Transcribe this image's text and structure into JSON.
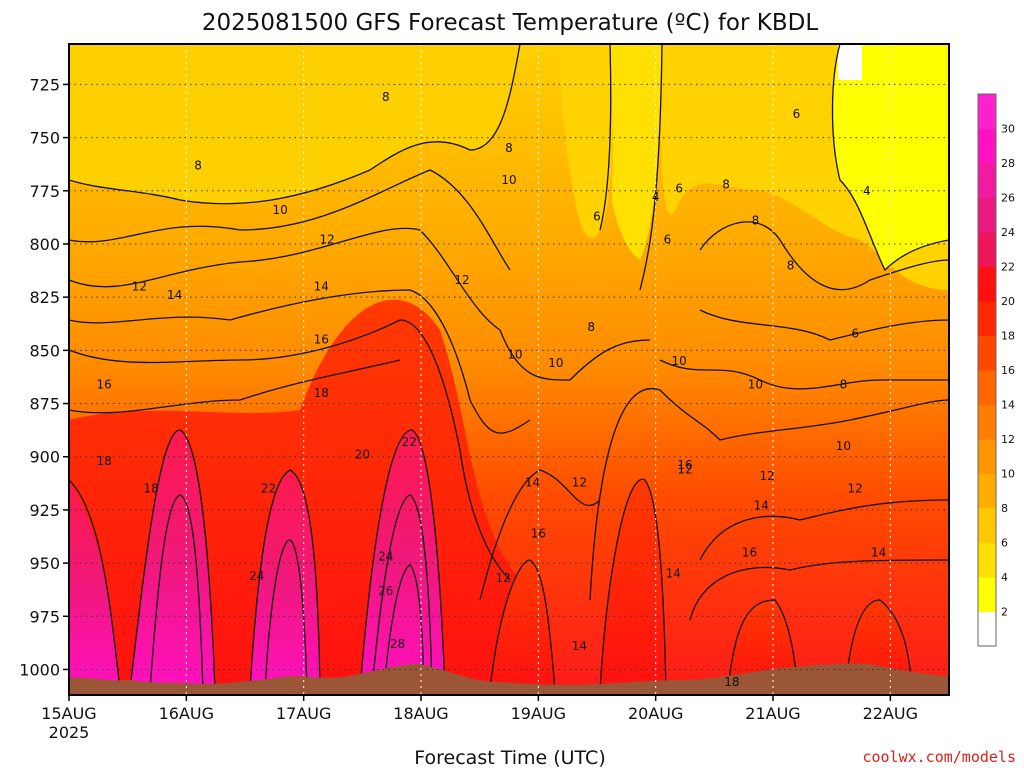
{
  "chart_data": {
    "type": "heatmap",
    "title": "2025081500 GFS Forecast Temperature (ºC) for KBDL",
    "xlabel": "Forecast Time (UTC)",
    "ylabel": "",
    "x_ticks": [
      "15AUG",
      "16AUG",
      "17AUG",
      "18AUG",
      "19AUG",
      "20AUG",
      "21AUG",
      "22AUG"
    ],
    "x_tick_year": "2025",
    "y_ticks": [
      725,
      750,
      775,
      800,
      825,
      850,
      875,
      900,
      925,
      950,
      975,
      1000
    ],
    "y_axis": "pressure (hPa), inverted",
    "ylim": [
      1012,
      706
    ],
    "xlim_days": [
      0,
      7.5
    ],
    "grid": true,
    "colorbar": {
      "ticks": [
        2,
        4,
        6,
        8,
        10,
        12,
        14,
        16,
        18,
        20,
        22,
        24,
        26,
        28,
        30
      ],
      "range": [
        0,
        32
      ],
      "colors": [
        "#ffffff",
        "#ffff00",
        "#ffe000",
        "#ffc800",
        "#ffae00",
        "#ff9500",
        "#ff7d00",
        "#ff6600",
        "#ff4800",
        "#ff2800",
        "#ff1010",
        "#f0145a",
        "#ea1a80",
        "#f21aa0",
        "#ff10c0",
        "#ff20d0"
      ]
    },
    "contour_labels": [
      {
        "day": 2.7,
        "p": 731,
        "v": 8
      },
      {
        "day": 6.2,
        "p": 739,
        "v": 6
      },
      {
        "day": 1.1,
        "p": 763,
        "v": 8
      },
      {
        "day": 3.75,
        "p": 770,
        "v": 10
      },
      {
        "day": 3.75,
        "p": 755,
        "v": 8
      },
      {
        "day": 5.0,
        "p": 778,
        "v": 4
      },
      {
        "day": 5.2,
        "p": 774,
        "v": 6
      },
      {
        "day": 5.6,
        "p": 772,
        "v": 8
      },
      {
        "day": 4.5,
        "p": 787,
        "v": 6
      },
      {
        "day": 6.8,
        "p": 775,
        "v": 4
      },
      {
        "day": 1.8,
        "p": 784,
        "v": 10
      },
      {
        "day": 2.2,
        "p": 798,
        "v": 12
      },
      {
        "day": 5.85,
        "p": 789,
        "v": 8
      },
      {
        "day": 5.1,
        "p": 798,
        "v": 6
      },
      {
        "day": 6.15,
        "p": 810,
        "v": 8
      },
      {
        "day": 0.6,
        "p": 820,
        "v": 12
      },
      {
        "day": 3.35,
        "p": 817,
        "v": 12
      },
      {
        "day": 0.9,
        "p": 824,
        "v": 14
      },
      {
        "day": 2.15,
        "p": 820,
        "v": 14
      },
      {
        "day": 4.45,
        "p": 839,
        "v": 8
      },
      {
        "day": 6.7,
        "p": 842,
        "v": 6
      },
      {
        "day": 2.15,
        "p": 845,
        "v": 16
      },
      {
        "day": 3.8,
        "p": 852,
        "v": 10
      },
      {
        "day": 4.15,
        "p": 856,
        "v": 10
      },
      {
        "day": 5.2,
        "p": 855,
        "v": 10
      },
      {
        "day": 0.3,
        "p": 866,
        "v": 16
      },
      {
        "day": 5.85,
        "p": 866,
        "v": 10
      },
      {
        "day": 2.15,
        "p": 870,
        "v": 18
      },
      {
        "day": 6.6,
        "p": 866,
        "v": 8
      },
      {
        "day": 6.6,
        "p": 895,
        "v": 10
      },
      {
        "day": 2.5,
        "p": 899,
        "v": 20
      },
      {
        "day": 2.9,
        "p": 893,
        "v": 22
      },
      {
        "day": 0.3,
        "p": 902,
        "v": 18
      },
      {
        "day": 4.35,
        "p": 912,
        "v": 12
      },
      {
        "day": 3.95,
        "p": 912,
        "v": 14
      },
      {
        "day": 5.25,
        "p": 904,
        "v": 16
      },
      {
        "day": 5.25,
        "p": 906,
        "v": 12
      },
      {
        "day": 5.95,
        "p": 909,
        "v": 12
      },
      {
        "day": 0.7,
        "p": 915,
        "v": 18
      },
      {
        "day": 1.7,
        "p": 915,
        "v": 22
      },
      {
        "day": 6.7,
        "p": 915,
        "v": 12
      },
      {
        "day": 5.9,
        "p": 923,
        "v": 14
      },
      {
        "day": 4.0,
        "p": 936,
        "v": 16
      },
      {
        "day": 5.8,
        "p": 945,
        "v": 16
      },
      {
        "day": 6.9,
        "p": 945,
        "v": 14
      },
      {
        "day": 2.7,
        "p": 947,
        "v": 24
      },
      {
        "day": 1.6,
        "p": 956,
        "v": 24
      },
      {
        "day": 3.7,
        "p": 957,
        "v": 12
      },
      {
        "day": 5.15,
        "p": 955,
        "v": 14
      },
      {
        "day": 2.7,
        "p": 963,
        "v": 26
      },
      {
        "day": 2.8,
        "p": 988,
        "v": 28
      },
      {
        "day": 4.35,
        "p": 989,
        "v": 14
      },
      {
        "day": 5.65,
        "p": 1006,
        "v": 18
      }
    ]
  },
  "footer": {
    "credit": "coolwx.com/models"
  }
}
